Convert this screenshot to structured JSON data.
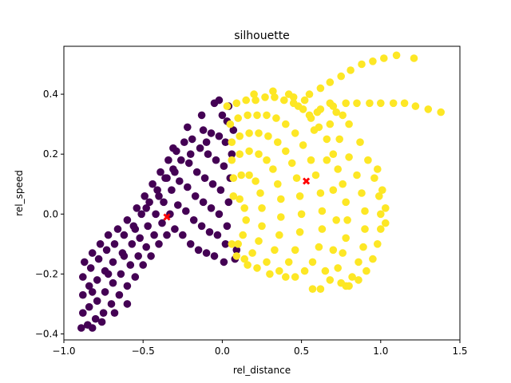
{
  "chart_data": {
    "type": "scatter",
    "title": "silhouette",
    "xlabel": "rel_distance",
    "ylabel": "rel_speed",
    "xlim": [
      -1.0,
      1.5
    ],
    "ylim": [
      -0.42,
      0.56
    ],
    "xticks": [
      -1.0,
      -0.5,
      0.0,
      0.5,
      1.0,
      1.5
    ],
    "xtick_labels": [
      "−1.0",
      "−0.5",
      "0.0",
      "0.5",
      "1.0",
      "1.5"
    ],
    "yticks": [
      -0.4,
      -0.2,
      0.0,
      0.2,
      0.4
    ],
    "ytick_labels": [
      "−0.4",
      "−0.2",
      "0.0",
      "0.2",
      "0.4"
    ],
    "grid": false,
    "colors": {
      "cluster_0": "#440154",
      "cluster_1": "#fde725",
      "centroid": "#ff0000"
    },
    "clusters": [
      {
        "color": "#440154",
        "points": [
          [
            -0.89,
            -0.38
          ],
          [
            -0.88,
            -0.33
          ],
          [
            -0.88,
            -0.27
          ],
          [
            -0.88,
            -0.21
          ],
          [
            -0.87,
            -0.16
          ],
          [
            -0.85,
            -0.37
          ],
          [
            -0.84,
            -0.31
          ],
          [
            -0.84,
            -0.24
          ],
          [
            -0.83,
            -0.18
          ],
          [
            -0.82,
            -0.13
          ],
          [
            -0.8,
            -0.35
          ],
          [
            -0.79,
            -0.29
          ],
          [
            -0.79,
            -0.22
          ],
          [
            -0.78,
            -0.15
          ],
          [
            -0.77,
            -0.1
          ],
          [
            -0.75,
            -0.33
          ],
          [
            -0.74,
            -0.26
          ],
          [
            -0.74,
            -0.19
          ],
          [
            -0.73,
            -0.12
          ],
          [
            -0.72,
            -0.07
          ],
          [
            -0.7,
            -0.3
          ],
          [
            -0.69,
            -0.23
          ],
          [
            -0.69,
            -0.16
          ],
          [
            -0.68,
            -0.1
          ],
          [
            -0.66,
            -0.05
          ],
          [
            -0.65,
            -0.27
          ],
          [
            -0.64,
            -0.2
          ],
          [
            -0.63,
            -0.13
          ],
          [
            -0.62,
            -0.07
          ],
          [
            -0.6,
            -0.02
          ],
          [
            -0.6,
            -0.24
          ],
          [
            -0.58,
            -0.17
          ],
          [
            -0.57,
            -0.1
          ],
          [
            -0.56,
            -0.04
          ],
          [
            -0.54,
            0.02
          ],
          [
            -0.55,
            -0.21
          ],
          [
            -0.53,
            -0.14
          ],
          [
            -0.52,
            -0.08
          ],
          [
            -0.51,
            0.0
          ],
          [
            -0.49,
            0.06
          ],
          [
            -0.5,
            -0.17
          ],
          [
            -0.48,
            -0.11
          ],
          [
            -0.47,
            -0.04
          ],
          [
            -0.46,
            0.04
          ],
          [
            -0.44,
            0.1
          ],
          [
            -0.45,
            -0.14
          ],
          [
            -0.43,
            -0.07
          ],
          [
            -0.42,
            0.0
          ],
          [
            -0.41,
            0.08
          ],
          [
            -0.39,
            0.14
          ],
          [
            -0.4,
            -0.1
          ],
          [
            -0.38,
            -0.03
          ],
          [
            -0.37,
            0.04
          ],
          [
            -0.36,
            0.12
          ],
          [
            -0.34,
            0.18
          ],
          [
            -0.35,
            -0.07
          ],
          [
            -0.33,
            0.0
          ],
          [
            -0.32,
            0.08
          ],
          [
            -0.31,
            0.15
          ],
          [
            -0.29,
            0.21
          ],
          [
            -0.3,
            -0.05
          ],
          [
            -0.28,
            0.03
          ],
          [
            -0.27,
            0.11
          ],
          [
            -0.26,
            0.18
          ],
          [
            -0.24,
            0.24
          ],
          [
            -0.25,
            -0.07
          ],
          [
            -0.23,
            0.01
          ],
          [
            -0.22,
            0.09
          ],
          [
            -0.21,
            0.17
          ],
          [
            -0.19,
            0.25
          ],
          [
            -0.2,
            -0.1
          ],
          [
            -0.18,
            -0.02
          ],
          [
            -0.17,
            0.06
          ],
          [
            -0.16,
            0.14
          ],
          [
            -0.14,
            0.22
          ],
          [
            -0.12,
            0.28
          ],
          [
            -0.15,
            -0.12
          ],
          [
            -0.13,
            -0.04
          ],
          [
            -0.12,
            0.04
          ],
          [
            -0.11,
            0.12
          ],
          [
            -0.09,
            0.2
          ],
          [
            -0.07,
            0.27
          ],
          [
            -0.1,
            -0.13
          ],
          [
            -0.08,
            -0.06
          ],
          [
            -0.07,
            0.02
          ],
          [
            -0.06,
            0.1
          ],
          [
            -0.04,
            0.18
          ],
          [
            -0.02,
            0.26
          ],
          [
            0.0,
            0.33
          ],
          [
            -0.05,
            -0.14
          ],
          [
            -0.03,
            -0.07
          ],
          [
            -0.02,
            0.0
          ],
          [
            -0.01,
            0.08
          ],
          [
            0.01,
            0.16
          ],
          [
            0.02,
            0.24
          ],
          [
            0.03,
            0.31
          ],
          [
            0.04,
            0.36
          ],
          [
            0.01,
            -0.16
          ],
          [
            0.02,
            -0.1
          ],
          [
            0.03,
            -0.04
          ],
          [
            0.04,
            0.04
          ],
          [
            0.05,
            0.12
          ],
          [
            0.06,
            0.2
          ],
          [
            0.07,
            0.28
          ],
          [
            0.08,
            -0.15
          ],
          [
            0.09,
            -0.12
          ],
          [
            -0.02,
            0.38
          ],
          [
            -0.05,
            0.37
          ],
          [
            -0.13,
            0.33
          ],
          [
            -0.22,
            0.29
          ],
          [
            -0.31,
            0.22
          ],
          [
            -0.6,
            -0.3
          ],
          [
            -0.68,
            -0.33
          ],
          [
            -0.76,
            -0.36
          ],
          [
            -0.82,
            -0.38
          ],
          [
            -0.62,
            -0.14
          ],
          [
            -0.72,
            -0.2
          ],
          [
            -0.82,
            -0.26
          ],
          [
            -0.4,
            0.06
          ],
          [
            -0.3,
            0.14
          ],
          [
            -0.2,
            0.2
          ],
          [
            -0.1,
            0.24
          ],
          [
            -0.48,
            0.02
          ],
          [
            -0.55,
            -0.05
          ],
          [
            -0.35,
            0.12
          ]
        ]
      },
      {
        "color": "#fde725",
        "points": [
          [
            0.03,
            0.36
          ],
          [
            0.09,
            0.37
          ],
          [
            0.15,
            0.38
          ],
          [
            0.21,
            0.38
          ],
          [
            0.27,
            0.39
          ],
          [
            0.33,
            0.39
          ],
          [
            0.39,
            0.38
          ],
          [
            0.45,
            0.37
          ],
          [
            0.51,
            0.35
          ],
          [
            0.56,
            0.32
          ],
          [
            0.61,
            0.29
          ],
          [
            0.66,
            0.25
          ],
          [
            0.7,
            0.2
          ],
          [
            0.73,
            0.15
          ],
          [
            0.76,
            0.1
          ],
          [
            0.78,
            0.04
          ],
          [
            0.79,
            -0.02
          ],
          [
            0.78,
            -0.08
          ],
          [
            0.76,
            -0.13
          ],
          [
            0.73,
            -0.18
          ],
          [
            0.68,
            -0.22
          ],
          [
            0.62,
            -0.25
          ],
          [
            0.57,
            -0.25
          ],
          [
            0.05,
            0.3
          ],
          [
            0.1,
            0.32
          ],
          [
            0.16,
            0.33
          ],
          [
            0.22,
            0.33
          ],
          [
            0.28,
            0.33
          ],
          [
            0.34,
            0.32
          ],
          [
            0.4,
            0.3
          ],
          [
            0.46,
            0.27
          ],
          [
            0.51,
            0.23
          ],
          [
            0.56,
            0.18
          ],
          [
            0.59,
            0.13
          ],
          [
            0.62,
            0.07
          ],
          [
            0.63,
            0.01
          ],
          [
            0.63,
            -0.05
          ],
          [
            0.61,
            -0.11
          ],
          [
            0.57,
            -0.16
          ],
          [
            0.52,
            -0.19
          ],
          [
            0.46,
            -0.21
          ],
          [
            0.4,
            -0.21
          ],
          [
            0.06,
            0.24
          ],
          [
            0.11,
            0.26
          ],
          [
            0.17,
            0.27
          ],
          [
            0.23,
            0.27
          ],
          [
            0.29,
            0.26
          ],
          [
            0.35,
            0.24
          ],
          [
            0.4,
            0.21
          ],
          [
            0.44,
            0.17
          ],
          [
            0.47,
            0.12
          ],
          [
            0.49,
            0.06
          ],
          [
            0.5,
            0.0
          ],
          [
            0.49,
            -0.06
          ],
          [
            0.46,
            -0.12
          ],
          [
            0.42,
            -0.16
          ],
          [
            0.36,
            -0.19
          ],
          [
            0.3,
            -0.2
          ],
          [
            0.06,
            0.18
          ],
          [
            0.11,
            0.2
          ],
          [
            0.17,
            0.21
          ],
          [
            0.23,
            0.2
          ],
          [
            0.28,
            0.18
          ],
          [
            0.32,
            0.15
          ],
          [
            0.35,
            0.1
          ],
          [
            0.37,
            0.05
          ],
          [
            0.37,
            -0.01
          ],
          [
            0.36,
            -0.07
          ],
          [
            0.33,
            -0.12
          ],
          [
            0.28,
            -0.16
          ],
          [
            0.22,
            -0.18
          ],
          [
            0.16,
            -0.17
          ],
          [
            0.07,
            0.12
          ],
          [
            0.12,
            0.13
          ],
          [
            0.17,
            0.13
          ],
          [
            0.21,
            0.11
          ],
          [
            0.24,
            0.07
          ],
          [
            0.25,
            0.02
          ],
          [
            0.25,
            -0.04
          ],
          [
            0.23,
            -0.09
          ],
          [
            0.19,
            -0.13
          ],
          [
            0.14,
            -0.15
          ],
          [
            0.09,
            -0.14
          ],
          [
            0.07,
            0.06
          ],
          [
            0.11,
            0.05
          ],
          [
            0.14,
            0.02
          ],
          [
            0.15,
            -0.02
          ],
          [
            0.13,
            -0.07
          ],
          [
            0.1,
            -0.1
          ],
          [
            0.06,
            -0.1
          ],
          [
            0.2,
            0.4
          ],
          [
            0.32,
            0.41
          ],
          [
            0.42,
            0.4
          ],
          [
            0.52,
            0.38
          ],
          [
            0.6,
            0.34
          ],
          [
            0.68,
            0.3
          ],
          [
            0.74,
            0.25
          ],
          [
            0.8,
            0.19
          ],
          [
            0.85,
            0.13
          ],
          [
            0.88,
            0.07
          ],
          [
            0.9,
            0.01
          ],
          [
            0.9,
            -0.05
          ],
          [
            0.89,
            -0.11
          ],
          [
            0.86,
            -0.16
          ],
          [
            0.82,
            -0.21
          ],
          [
            0.78,
            -0.24
          ],
          [
            0.72,
            0.34
          ],
          [
            0.8,
            0.3
          ],
          [
            0.87,
            0.24
          ],
          [
            0.92,
            0.18
          ],
          [
            0.96,
            0.12
          ],
          [
            0.99,
            0.06
          ],
          [
            1.0,
            0.0
          ],
          [
            1.0,
            -0.05
          ],
          [
            0.98,
            -0.1
          ],
          [
            0.95,
            -0.15
          ],
          [
            0.91,
            -0.19
          ],
          [
            0.86,
            -0.22
          ],
          [
            0.8,
            -0.24
          ],
          [
            0.75,
            -0.23
          ],
          [
            0.98,
            0.15
          ],
          [
            1.01,
            0.08
          ],
          [
            1.03,
            0.02
          ],
          [
            1.03,
            -0.03
          ],
          [
            0.68,
            0.37
          ],
          [
            0.76,
            0.33
          ],
          [
            0.55,
            0.4
          ],
          [
            0.62,
            0.42
          ],
          [
            0.68,
            0.44
          ],
          [
            0.75,
            0.46
          ],
          [
            0.81,
            0.48
          ],
          [
            0.88,
            0.5
          ],
          [
            0.95,
            0.51
          ],
          [
            1.02,
            0.52
          ],
          [
            1.1,
            0.53
          ],
          [
            1.21,
            0.52
          ],
          [
            0.55,
            0.33
          ],
          [
            0.62,
            0.35
          ],
          [
            0.7,
            0.36
          ],
          [
            0.78,
            0.37
          ],
          [
            0.85,
            0.37
          ],
          [
            0.93,
            0.37
          ],
          [
            1.0,
            0.37
          ],
          [
            1.08,
            0.37
          ],
          [
            1.15,
            0.37
          ],
          [
            1.22,
            0.36
          ],
          [
            1.3,
            0.35
          ],
          [
            1.38,
            0.34
          ],
          [
            0.45,
            0.39
          ],
          [
            0.48,
            0.36
          ],
          [
            0.58,
            0.28
          ],
          [
            0.66,
            0.18
          ],
          [
            0.7,
            0.08
          ],
          [
            0.72,
            -0.02
          ],
          [
            0.7,
            -0.12
          ],
          [
            0.65,
            -0.19
          ]
        ]
      }
    ],
    "centroids": [
      [
        -0.35,
        -0.01
      ],
      [
        0.53,
        0.11
      ]
    ]
  }
}
